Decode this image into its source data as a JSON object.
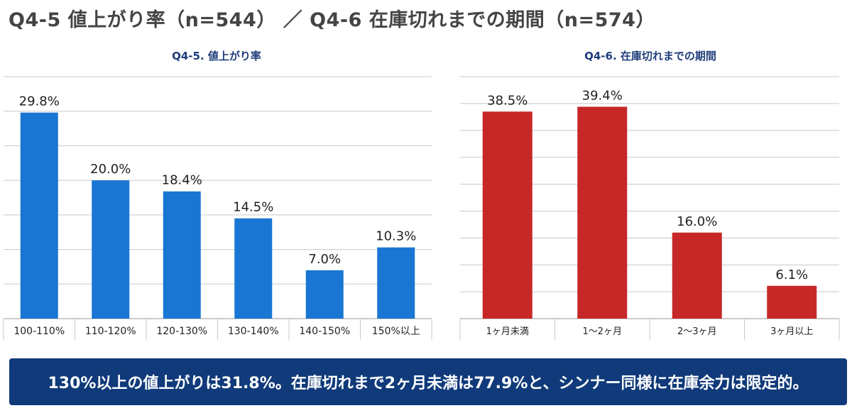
{
  "page": {
    "title": "Q4-5 値上がり率（n=544） ／ Q4-6 在庫切れまでの期間（n=574）",
    "summary": "130%以上の値上がりは31.8%。在庫切れまで2ヶ月未満は77.9%と、シンナー同様に在庫余力は限定的。"
  },
  "colors": {
    "blue_bar": "#1976d2",
    "red_bar": "#c62828",
    "banner": "#103a7a",
    "title_blue": "#1f3d7a"
  },
  "chart_data": [
    {
      "type": "bar",
      "title": "Q4-5. 値上がり率",
      "categories": [
        "100-110%",
        "110-120%",
        "120-130%",
        "130-140%",
        "140-150%",
        "150%以上"
      ],
      "values": [
        29.8,
        20.0,
        18.4,
        14.5,
        7.0,
        10.3
      ],
      "value_labels": [
        "29.8%",
        "20.0%",
        "18.4%",
        "14.5%",
        "7.0%",
        "10.3%"
      ],
      "ylim": [
        0,
        35
      ],
      "ytick_step": 5,
      "grid": true,
      "color": "#1976d2"
    },
    {
      "type": "bar",
      "title": "Q4-6. 在庫切れまでの期間",
      "categories": [
        "1ヶ月未満",
        "1～2ヶ月",
        "2～3ヶ月",
        "3ヶ月以上"
      ],
      "values": [
        38.5,
        39.4,
        16.0,
        6.1
      ],
      "value_labels": [
        "38.5%",
        "39.4%",
        "16.0%",
        "6.1%"
      ],
      "ylim": [
        0,
        45
      ],
      "ytick_step": 5,
      "grid": true,
      "color": "#c62828"
    }
  ]
}
